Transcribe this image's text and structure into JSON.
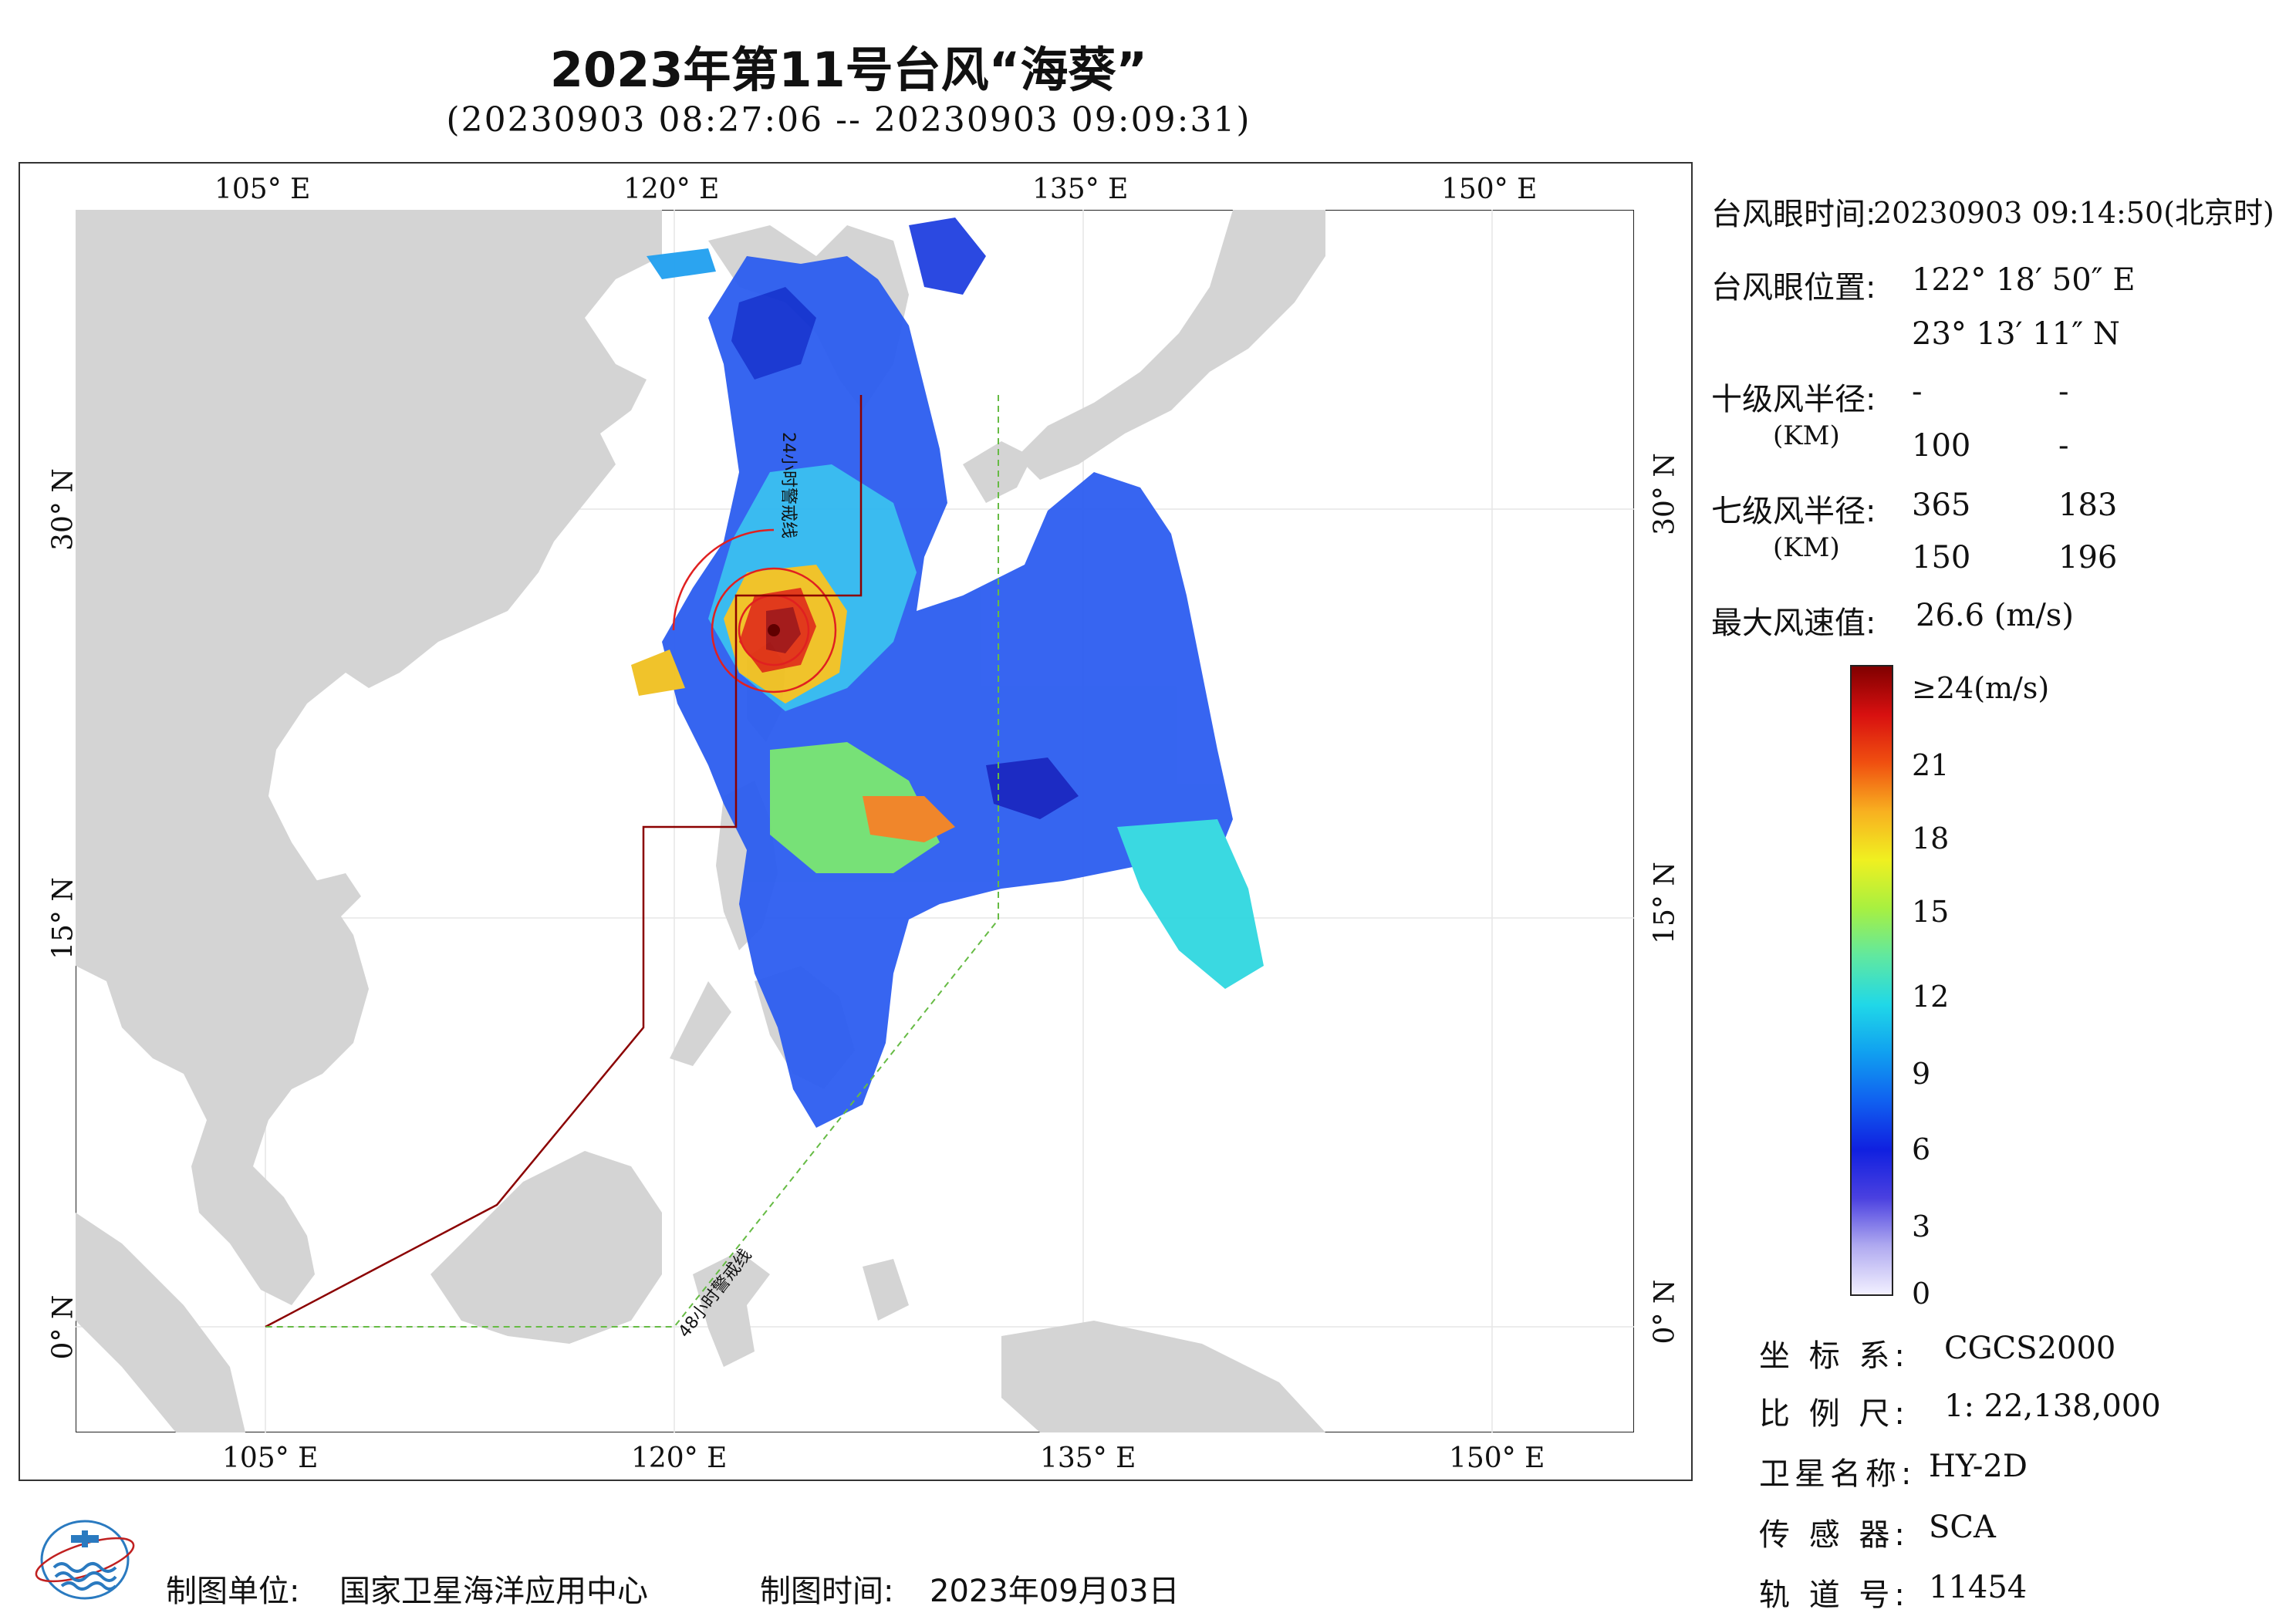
{
  "title": "2023年第11号台风“海葵”",
  "subtitle": "(20230903 08:27:06 -- 20230903 09:09:31)",
  "map": {
    "lon_ticks": [
      "105° E",
      "120° E",
      "135° E",
      "150° E"
    ],
    "lat_ticks": [
      "30° N",
      "15° N",
      "0° N"
    ],
    "lines": {
      "warn24": "24小时警戒线",
      "warn48": "48小时警戒线"
    },
    "colors": {
      "land": "#d4d4d4",
      "sea": "#ffffff",
      "warn24": "#8b0000",
      "warn48": "#66bb44"
    }
  },
  "info": {
    "eye_time_label": "台风眼时间:",
    "eye_time_value": "20230903 09:14:50(北京时)",
    "eye_pos_label": "台风眼位置:",
    "eye_lon": "122° 18′ 50″ E",
    "eye_lat": "23° 13′ 11″ N",
    "r10_label": "十级风半径:",
    "r10_unit": "(KM)",
    "r10": [
      "-",
      "-",
      "100",
      "-"
    ],
    "r7_label": "七级风半径:",
    "r7_unit": "(KM)",
    "r7": [
      "365",
      "183",
      "150",
      "196"
    ],
    "max_wind_label": "最大风速值:",
    "max_wind_value": "26.6  (m/s)"
  },
  "colorbar": {
    "labels": [
      "≥24(m/s)",
      "21",
      "18",
      "15",
      "12",
      "9",
      "6",
      "3",
      "0"
    ],
    "stops": [
      "#f2f0ff",
      "#b0aaf0",
      "#4a40e0",
      "#1020e0",
      "#1060f0",
      "#10a0f0",
      "#20d8e8",
      "#60e8a0",
      "#a8f040",
      "#f0f020",
      "#f8b020",
      "#f05010",
      "#d81010",
      "#800000"
    ]
  },
  "meta": {
    "crs_label": "坐 标 系:",
    "crs_value": "CGCS2000",
    "scale_label": "比 例 尺:",
    "scale_value": "1: 22,138,000",
    "sat_label": "卫星名称:",
    "sat_value": "HY-2D",
    "sensor_label": "传 感 器:",
    "sensor_value": "SCA",
    "orbit_label": "轨 道 号:",
    "orbit_value": "11454"
  },
  "footer": {
    "unit_label": "制图单位:",
    "unit_value": "国家卫星海洋应用中心",
    "time_label": "制图时间:",
    "time_value": "2023年09月03日"
  }
}
